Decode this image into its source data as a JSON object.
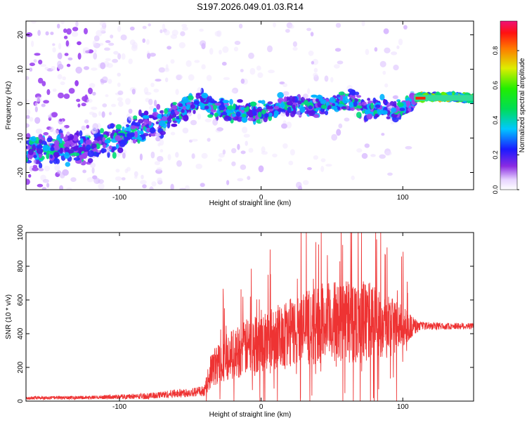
{
  "title": "S197.2026.049.01.03.R14",
  "colors": {
    "signal_line": "#ee3333",
    "axis": "#000000"
  },
  "chart_data": [
    {
      "type": "heatmap",
      "xlabel": "Height of straight line (km)",
      "ylabel": "Frequency (Hz)",
      "xlim": [
        -166,
        150
      ],
      "ylim": [
        -25,
        24
      ],
      "xticks": [
        -100,
        0,
        100
      ],
      "xtick_labels": [
        "-100",
        "0",
        "100"
      ],
      "yticks": [
        -20,
        -10,
        0,
        10,
        20
      ],
      "ytick_labels": [
        "-20",
        "-10",
        "0",
        "10",
        "20"
      ],
      "trend": {
        "x": [
          -125,
          -110,
          -95,
          -80,
          -70,
          -60,
          -50,
          -42,
          -35,
          -25,
          -15,
          -5,
          5,
          15,
          25,
          35,
          45,
          55,
          65,
          75,
          85,
          95,
          105,
          110,
          120,
          135,
          150
        ],
        "y": [
          -13,
          -11,
          -9,
          -7,
          -5,
          -3,
          0,
          1,
          -1,
          -2,
          -2,
          -3,
          -2,
          -1,
          0,
          -1,
          0,
          0,
          1,
          -2,
          -1,
          -2,
          0,
          2,
          2,
          2,
          1.5
        ]
      },
      "colorbar": {
        "label": "Normalized spectral amplitude",
        "range": [
          0.0,
          0.97
        ],
        "ticks": [
          0.0,
          0.2,
          0.4,
          0.6,
          0.8
        ],
        "tick_labels": [
          "0.0",
          "0.2",
          "0.4",
          "0.6",
          "0.8"
        ]
      }
    },
    {
      "type": "line",
      "xlabel": "Height of straight line (km)",
      "ylabel": "SNR (10 * v/v)",
      "xlim": [
        -166,
        150
      ],
      "ylim": [
        0,
        1000
      ],
      "xticks": [
        -100,
        0,
        100
      ],
      "xtick_labels": [
        "-100",
        "0",
        "100"
      ],
      "yticks": [
        0,
        200,
        400,
        600,
        800,
        1000
      ],
      "ytick_labels": [
        "0",
        "200",
        "400",
        "600",
        "800",
        "1000"
      ],
      "envelope": {
        "x": [
          -166,
          -120,
          -80,
          -60,
          -40,
          -35,
          -25,
          -10,
          10,
          30,
          50,
          70,
          90,
          105,
          112,
          130,
          150
        ],
        "base": [
          18,
          22,
          30,
          45,
          60,
          190,
          260,
          320,
          380,
          430,
          470,
          480,
          450,
          440,
          445,
          445,
          445
        ],
        "amp": [
          10,
          10,
          18,
          25,
          30,
          110,
          140,
          170,
          190,
          220,
          240,
          260,
          200,
          80,
          25,
          20,
          20
        ]
      }
    }
  ]
}
